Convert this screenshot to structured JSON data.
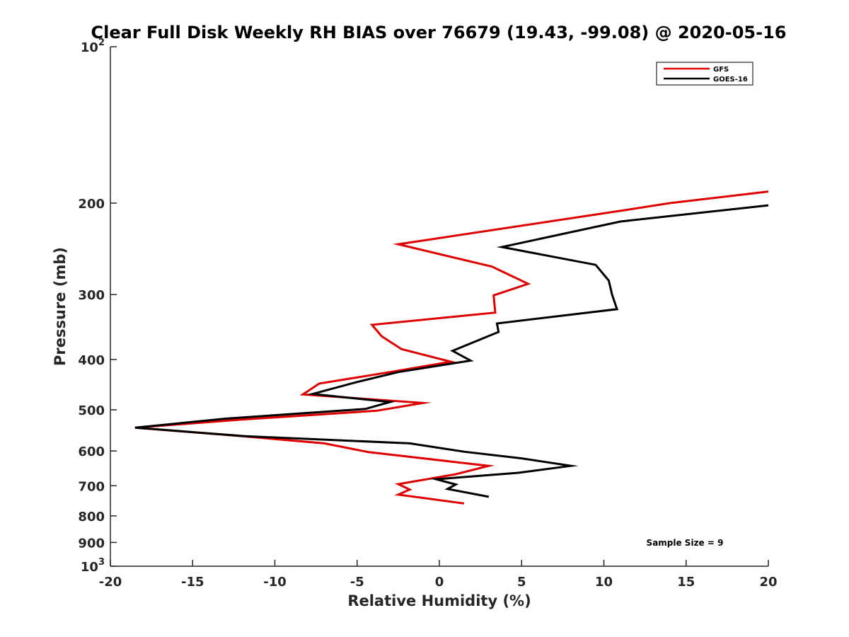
{
  "chart_data": {
    "type": "line",
    "title": "Clear Full Disk Weekly RH BIAS over 76679 (19.43, -99.08) @ 2020-05-16",
    "xlabel": "Relative Humidity (%)",
    "ylabel": "Pressure (mb)",
    "xlim": [
      -20,
      20
    ],
    "ylim": [
      100,
      1000
    ],
    "yscale": "log",
    "y_reversed": true,
    "x_ticks": [
      -20,
      -15,
      -10,
      -5,
      0,
      5,
      10,
      15,
      20
    ],
    "x_tick_labels": [
      "-20",
      "-15",
      "-10",
      "-5",
      "0",
      "5",
      "10",
      "15",
      "20"
    ],
    "y_ticks": [
      {
        "value": 100,
        "base": "10",
        "exp": "2"
      },
      {
        "value": 200,
        "text": "200"
      },
      {
        "value": 300,
        "text": "300"
      },
      {
        "value": 400,
        "text": "400"
      },
      {
        "value": 500,
        "text": "500"
      },
      {
        "value": 600,
        "text": "600"
      },
      {
        "value": 700,
        "text": "700"
      },
      {
        "value": 800,
        "text": "800"
      },
      {
        "value": 900,
        "text": "900"
      },
      {
        "value": 1000,
        "base": "10",
        "exp": "3"
      }
    ],
    "grid": false,
    "legend_position": "top-right",
    "annotation": "Sample Size = 9",
    "series": [
      {
        "name": "GFS",
        "color": "#e00000",
        "points": [
          [
            20.0,
            190
          ],
          [
            14.0,
            200
          ],
          [
            11.0,
            207
          ],
          [
            -2.5,
            240
          ],
          [
            3.2,
            265
          ],
          [
            5.4,
            286
          ],
          [
            3.3,
            301
          ],
          [
            3.4,
            325
          ],
          [
            -4.1,
            343
          ],
          [
            -3.5,
            361
          ],
          [
            -2.3,
            382
          ],
          [
            0.7,
            404
          ],
          [
            -3.0,
            423
          ],
          [
            -7.3,
            445
          ],
          [
            -8.3,
            467
          ],
          [
            -1.0,
            485
          ],
          [
            -3.8,
            502
          ],
          [
            -12.0,
            522
          ],
          [
            -18.5,
            541
          ],
          [
            -12.0,
            562
          ],
          [
            -7.0,
            580
          ],
          [
            -4.3,
            603
          ],
          [
            3.0,
            641
          ],
          [
            1.0,
            665
          ],
          [
            -2.5,
            695
          ],
          [
            -1.8,
            712
          ],
          [
            -2.5,
            728
          ],
          [
            1.5,
            757
          ]
        ]
      },
      {
        "name": "GOES-16",
        "color": "#000000",
        "points": [
          [
            20.0,
            202
          ],
          [
            11.0,
            217
          ],
          [
            3.8,
            243
          ],
          [
            9.5,
            263
          ],
          [
            10.3,
            282
          ],
          [
            10.5,
            300
          ],
          [
            10.8,
            320
          ],
          [
            3.5,
            341
          ],
          [
            3.6,
            354
          ],
          [
            0.8,
            385
          ],
          [
            1.9,
            402
          ],
          [
            -2.5,
            423
          ],
          [
            -5.0,
            442
          ],
          [
            -7.7,
            466
          ],
          [
            -3.0,
            483
          ],
          [
            -4.5,
            498
          ],
          [
            -13.0,
            520
          ],
          [
            -18.5,
            541
          ],
          [
            -11.8,
            562
          ],
          [
            -1.8,
            580
          ],
          [
            1.5,
            602
          ],
          [
            5.0,
            620
          ],
          [
            8.0,
            641
          ],
          [
            4.8,
            661
          ],
          [
            -0.2,
            680
          ],
          [
            1.0,
            696
          ],
          [
            0.5,
            710
          ],
          [
            3.0,
            735
          ]
        ]
      }
    ]
  }
}
